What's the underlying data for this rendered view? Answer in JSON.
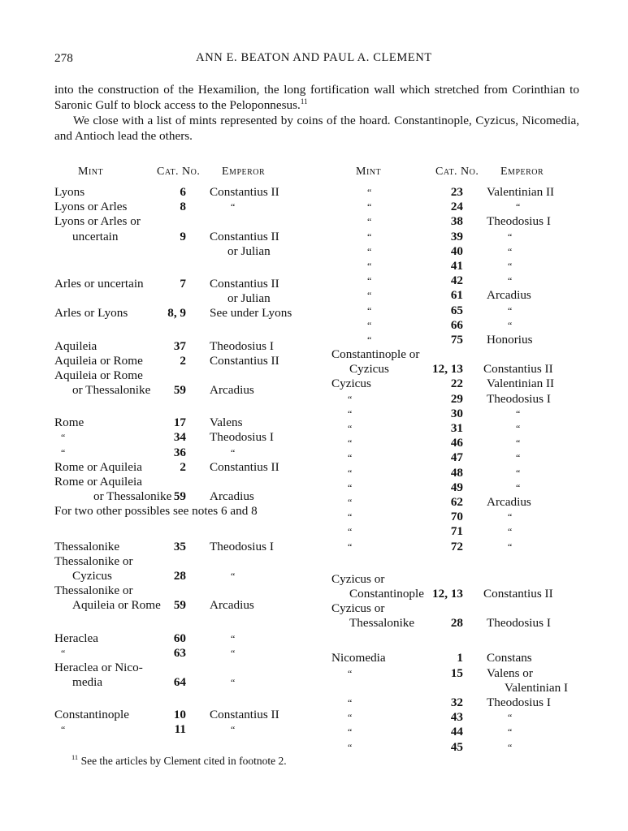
{
  "page_number": "278",
  "running_head": "ANN E. BEATON AND PAUL A. CLEMENT",
  "paragraphs": [
    {
      "text": "into the construction of the Hexamilion, the long fortification wall which stretched from Corinthian to Saronic Gulf to block access to the Peloponnesus.",
      "note": "11"
    },
    {
      "text": "We close with a list of mints represented by coins of the hoard. Constantinople, Cyzicus, Nicomedia, and Antioch lead the others.",
      "note": ""
    }
  ],
  "headers": {
    "mint": "Mint",
    "cat": "Cat. No.",
    "emperor": "Emperor"
  },
  "left_rows": [
    {
      "mint": "Lyons",
      "cat": "6",
      "emp": "Constantius II"
    },
    {
      "mint": "Lyons or Arles",
      "cat": "8",
      "emp": "“"
    },
    {
      "mint": "Lyons or Arles or"
    },
    {
      "mint": "uncertain",
      "cont": true,
      "cat": "9",
      "emp": "Constantius II"
    },
    {
      "emp": "or Julian",
      "emp_cont": true
    },
    {
      "gap": true
    },
    {
      "mint": "Arles or uncertain",
      "cat": "7",
      "emp": "Constantius II"
    },
    {
      "emp": "or Julian",
      "emp_cont": true
    },
    {
      "mint": "Arles or Lyons",
      "cat": "8, 9",
      "emp": "See under Lyons"
    },
    {
      "gap": true
    },
    {
      "mint": "Aquileia",
      "cat": "37",
      "emp": "Theodosius I"
    },
    {
      "mint": "Aquileia or Rome",
      "cat": "2",
      "emp": "Constantius II"
    },
    {
      "mint": "Aquileia or Rome"
    },
    {
      "mint": "or Thessalonike",
      "cont": true,
      "cat": "59",
      "emp": "Arcadius"
    },
    {
      "gap": true
    },
    {
      "mint": "“",
      "cat": "17",
      "emp": "Valens",
      "first": "Rome"
    },
    {
      "mint": "“",
      "cat": "34",
      "emp": "Theodosius I"
    },
    {
      "mint": "“",
      "cat": "36",
      "emp": "“"
    },
    {
      "mint": "Rome or Aquileia",
      "cat": "2",
      "emp": "Constantius II"
    },
    {
      "mint": "Rome or Aquileia"
    },
    {
      "mint": "or Thessalonike",
      "cont2": true,
      "cat": "59",
      "emp": "Arcadius"
    },
    {
      "full": "For two other possibles see notes 6 and 8"
    },
    {
      "gap2": true
    },
    {
      "mint": "Thessalonike",
      "cat": "35",
      "emp": "Theodosius I"
    },
    {
      "mint": "Thessalonike or"
    },
    {
      "mint": "Cyzicus",
      "cont": true,
      "cat": "28",
      "emp": "“"
    },
    {
      "mint": "Thessalonike or"
    },
    {
      "mint": "Aquileia or Rome",
      "cont": true,
      "cat": "59",
      "emp": "Arcadius"
    },
    {
      "gap": true
    },
    {
      "mint": "Heraclea",
      "cat": "60",
      "emp": "“"
    },
    {
      "mint": "“",
      "cat": "63",
      "emp": "“"
    },
    {
      "mint": "Heraclea or Nico-"
    },
    {
      "mint": "media",
      "cont": true,
      "cat": "64",
      "emp": "“"
    },
    {
      "gap": true
    },
    {
      "mint": "Constantinople",
      "cat": "10",
      "emp": "Constantius II"
    },
    {
      "mint": "“",
      "cat": "11",
      "emp": "“"
    }
  ],
  "right_rows": [
    {
      "mint": "“",
      "dc": true,
      "cat": "23",
      "emp": "Valentinian II"
    },
    {
      "mint": "“",
      "dc": true,
      "cat": "24",
      "emp": "“",
      "ew": true
    },
    {
      "mint": "“",
      "dc": true,
      "cat": "38",
      "emp": "Theodosius I"
    },
    {
      "mint": "“",
      "dc": true,
      "cat": "39",
      "emp": "“"
    },
    {
      "mint": "“",
      "dc": true,
      "cat": "40",
      "emp": "“"
    },
    {
      "mint": "“",
      "dc": true,
      "cat": "41",
      "emp": "“"
    },
    {
      "mint": "“",
      "dc": true,
      "cat": "42",
      "emp": "“"
    },
    {
      "mint": "“",
      "dc": true,
      "cat": "61",
      "emp": "Arcadius"
    },
    {
      "mint": "“",
      "dc": true,
      "cat": "65",
      "emp": "“"
    },
    {
      "mint": "“",
      "dc": true,
      "cat": "66",
      "emp": "“"
    },
    {
      "mint": "“",
      "dc": true,
      "cat": "75",
      "emp": "Honorius"
    },
    {
      "mint": "Constantinople or",
      "small": true
    },
    {
      "mint": "Cyzicus",
      "cont": true,
      "cat": "12, 13",
      "emp": "Constantius II",
      "tight": true
    },
    {
      "mint": "Cyzicus",
      "cat": "22",
      "emp": "Valentinian II"
    },
    {
      "mint": "“",
      "cat": "29",
      "emp": "Theodosius I"
    },
    {
      "mint": "“",
      "cat": "30",
      "emp": "“",
      "ew": true
    },
    {
      "mint": "“",
      "cat": "31",
      "emp": "“",
      "ew": true
    },
    {
      "mint": "“",
      "cat": "46",
      "emp": "“",
      "ew": true
    },
    {
      "mint": "“",
      "cat": "47",
      "emp": "“",
      "ew": true
    },
    {
      "mint": "“",
      "cat": "48",
      "emp": "“",
      "ew": true
    },
    {
      "mint": "“",
      "cat": "49",
      "emp": "“",
      "ew": true
    },
    {
      "mint": "“",
      "cat": "62",
      "emp": "Arcadius"
    },
    {
      "mint": "“",
      "cat": "70",
      "emp": "“"
    },
    {
      "mint": "“",
      "cat": "71",
      "emp": "“"
    },
    {
      "mint": "“",
      "cat": "72",
      "emp": "“"
    },
    {
      "gap": true
    },
    {
      "mint": "Cyzicus or"
    },
    {
      "mint": "Constantinople",
      "cont": true,
      "cat": "12, 13",
      "emp": "Constantius II",
      "tight": true
    },
    {
      "mint": "Cyzicus or"
    },
    {
      "mint": "Thessalonike",
      "cont": true,
      "cat": "28",
      "emp": "Theodosius I"
    },
    {
      "gap2": true
    },
    {
      "mint": "Nicomedia",
      "cat": "1",
      "emp": "Constans"
    },
    {
      "mint": "“",
      "cat": "15",
      "emp": "Valens or"
    },
    {
      "emp": "Valentinian I",
      "emp_cont": true
    },
    {
      "mint": "“",
      "cat": "32",
      "emp": "Theodosius I"
    },
    {
      "mint": "“",
      "cat": "43",
      "emp": "“"
    },
    {
      "mint": "“",
      "cat": "44",
      "emp": "“"
    },
    {
      "mint": "“",
      "cat": "45",
      "emp": "“"
    }
  ],
  "footnote": {
    "number": "11",
    "text": "See the articles by Clement cited in footnote 2."
  }
}
